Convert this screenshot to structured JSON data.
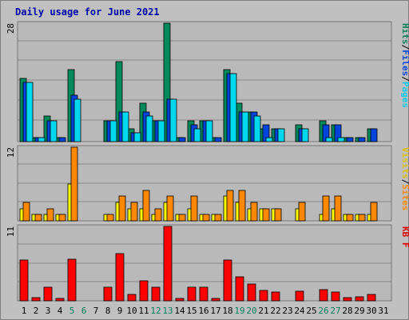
{
  "chart_data": {
    "title": "Daily usage for June 2021",
    "type": "bar",
    "days": [
      "1",
      "2",
      "3",
      "4",
      "5",
      "6",
      "7",
      "8",
      "9",
      "10",
      "11",
      "12",
      "13",
      "14",
      "15",
      "16",
      "17",
      "18",
      "19",
      "20",
      "21",
      "22",
      "23",
      "24",
      "25",
      "26",
      "27",
      "28",
      "29",
      "30",
      "31"
    ],
    "weekend_days": [
      "5",
      "6",
      "12",
      "13",
      "19",
      "20",
      "26",
      "27"
    ],
    "panels": [
      {
        "id": "hits-panel",
        "max_label": "28",
        "ymax": 28,
        "legend": [
          {
            "text": "Hits",
            "color": "#00805a"
          },
          {
            "text": "/",
            "color": "#000000"
          },
          {
            "text": "Files",
            "color": "#0044dd"
          },
          {
            "text": "/",
            "color": "#000000"
          },
          {
            "text": "Pages",
            "color": "#00ccee"
          }
        ],
        "series": [
          {
            "name": "Hits",
            "color": "#008a5c",
            "values": [
              15,
              1,
              6,
              1,
              17,
              0,
              0,
              5,
              19,
              3,
              9,
              5,
              28,
              1,
              5,
              5,
              1,
              17,
              9,
              7,
              3,
              3,
              0,
              4,
              0,
              5,
              4,
              1,
              1,
              3,
              0
            ]
          },
          {
            "name": "Files",
            "color": "#0044dd",
            "values": [
              14,
              1,
              5,
              1,
              11,
              0,
              0,
              5,
              7,
              2,
              7,
              5,
              10,
              1,
              4,
              5,
              1,
              16,
              7,
              7,
              4,
              3,
              0,
              3,
              0,
              4,
              4,
              1,
              1,
              3,
              0
            ]
          },
          {
            "name": "Pages",
            "color": "#00d8f0",
            "values": [
              14,
              1,
              5,
              0,
              10,
              0,
              0,
              5,
              7,
              2,
              6,
              5,
              10,
              0,
              3,
              5,
              0,
              16,
              7,
              6,
              1,
              3,
              0,
              3,
              0,
              1,
              1,
              0,
              0,
              0,
              0
            ]
          }
        ]
      },
      {
        "id": "visits-panel",
        "max_label": "12",
        "ymax": 12,
        "legend": [
          {
            "text": "Visits",
            "color": "#e0c000"
          },
          {
            "text": "/",
            "color": "#000000"
          },
          {
            "text": "Sites",
            "color": "#ff8800"
          }
        ],
        "series": [
          {
            "name": "Visits",
            "color": "#ffff00",
            "values": [
              2,
              1,
              1,
              1,
              6,
              0,
              0,
              1,
              3,
              2,
              2,
              1,
              3,
              1,
              2,
              1,
              1,
              4,
              3,
              2,
              2,
              2,
              0,
              2,
              0,
              1,
              2,
              1,
              1,
              1,
              0
            ]
          },
          {
            "name": "Sites",
            "color": "#ff8800",
            "values": [
              3,
              1,
              2,
              1,
              12,
              0,
              0,
              1,
              4,
              3,
              5,
              2,
              4,
              1,
              4,
              1,
              1,
              5,
              5,
              3,
              2,
              2,
              0,
              3,
              0,
              4,
              4,
              1,
              1,
              3,
              0
            ]
          }
        ]
      },
      {
        "id": "kb-panel",
        "max_label": "11",
        "ymax": 11,
        "legend": [
          {
            "text": "KB F",
            "color": "#dd0000"
          }
        ],
        "series": [
          {
            "name": "KB F",
            "color": "#ff0000",
            "values": [
              6,
              0.5,
              2,
              0.4,
              6.2,
              0,
              0,
              2,
              7,
              1,
              3,
              2,
              11,
              0.3,
              2,
              2,
              0.3,
              6,
              3.5,
              2.5,
              1.5,
              1.3,
              0,
              1.4,
              0,
              1.6,
              1.3,
              0.5,
              0.6,
              1,
              0
            ]
          }
        ]
      }
    ]
  }
}
